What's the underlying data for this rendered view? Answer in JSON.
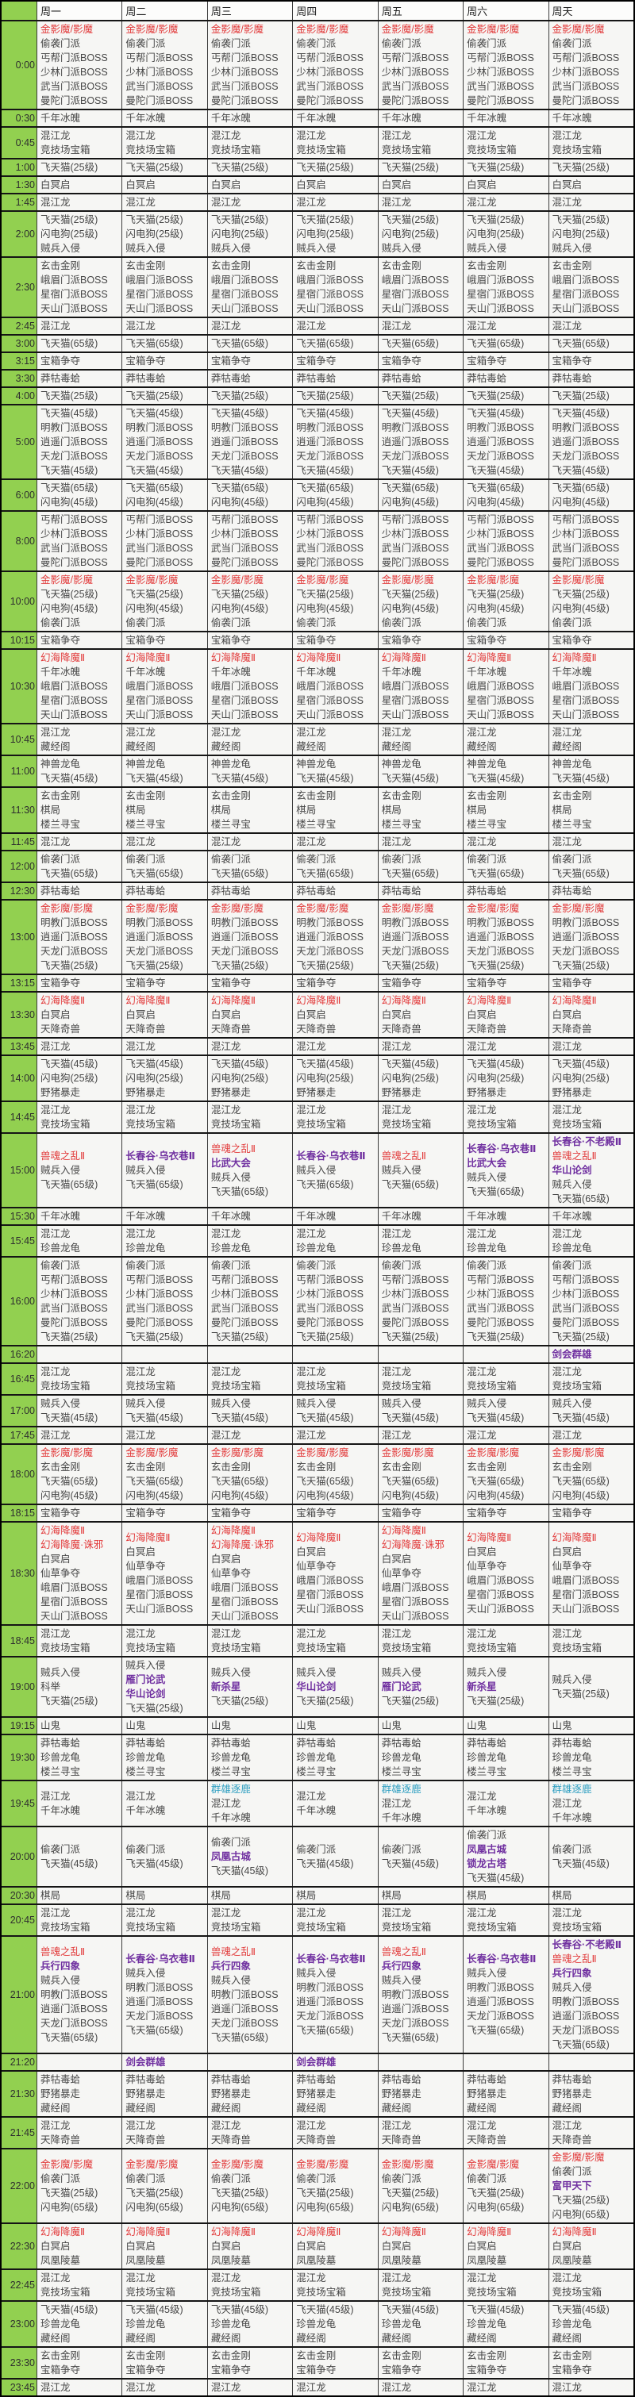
{
  "days": [
    "周一",
    "周二",
    "周三",
    "周四",
    "周五",
    "周六",
    "周天"
  ],
  "palette": {
    "time_column_green": "#92D050",
    "grid_line": "#151515",
    "cell_background": "#f6f6f4",
    "text_default": "#474747",
    "event_red": "#e23b3b",
    "event_purple": "#7030a0",
    "event_blue": "#2f9fc1"
  },
  "event_colors": {
    "金影魔/影魔": "red",
    "幻海降魔Ⅱ": "red",
    "幻海降魔·诛邪": "red",
    "兽魂之乱Ⅱ": "red",
    "长春谷·乌衣巷Ⅱ": "purple",
    "长春谷·不老殿Ⅱ": "purple",
    "比武大会": "purple",
    "华山论剑": "purple",
    "雁门论武": "purple",
    "新杀星": "purple",
    "凤凰古城": "purple",
    "锁龙古塔": "purple",
    "兵行四象": "purple",
    "剑会群雄": "purple",
    "富甲天下": "purple",
    "群雄逐鹿": "blue"
  },
  "rows": [
    {
      "time": "0:00",
      "all": [
        "金影魔/影魔",
        "偷袭门派",
        "丐帮门派BOSS",
        "少林门派BOSS",
        "武当门派BOSS",
        "曼陀门派BOSS"
      ]
    },
    {
      "time": "0:30",
      "all": [
        "千年冰魄"
      ]
    },
    {
      "time": "0:45",
      "all": [
        "混江龙",
        "竞技场宝箱"
      ]
    },
    {
      "time": "1:00",
      "all": [
        "飞天猫(25级)"
      ]
    },
    {
      "time": "1:30",
      "all": [
        "白冥启"
      ]
    },
    {
      "time": "1:45",
      "all": [
        "混江龙"
      ]
    },
    {
      "time": "2:00",
      "all": [
        "飞天猫(25级)",
        "闪电狗(25级)",
        "贼兵入侵"
      ]
    },
    {
      "time": "2:30",
      "all": [
        "玄击金刚",
        "峨眉门派BOSS",
        "星宿门派BOSS",
        "天山门派BOSS"
      ]
    },
    {
      "time": "2:45",
      "all": [
        "混江龙"
      ]
    },
    {
      "time": "3:00",
      "all": [
        "飞天猫(65级)"
      ]
    },
    {
      "time": "3:15",
      "all": [
        "宝箱争夺"
      ]
    },
    {
      "time": "3:30",
      "all": [
        "莽牯毒蛤"
      ]
    },
    {
      "time": "4:00",
      "all": [
        "飞天猫(25级)"
      ]
    },
    {
      "time": "5:00",
      "all": [
        "飞天猫(45级)",
        "明教门派BOSS",
        "逍遥门派BOSS",
        "天龙门派BOSS",
        "飞天猫(45级)"
      ]
    },
    {
      "time": "6:00",
      "all": [
        "飞天猫(65级)",
        "闪电狗(45级)"
      ]
    },
    {
      "time": "8:00",
      "all": [
        "丐帮门派BOSS",
        "少林门派BOSS",
        "武当门派BOSS",
        "曼陀门派BOSS"
      ]
    },
    {
      "time": "10:00",
      "all": [
        "金影魔/影魔",
        "飞天猫(25级)",
        "闪电狗(45级)",
        "偷袭门派"
      ]
    },
    {
      "time": "10:15",
      "all": [
        "宝箱争夺"
      ]
    },
    {
      "time": "10:30",
      "all": [
        "幻海降魔Ⅱ",
        "千年冰魄",
        "峨眉门派BOSS",
        "星宿门派BOSS",
        "天山门派BOSS"
      ]
    },
    {
      "time": "10:45",
      "all": [
        "混江龙",
        "藏经阁"
      ]
    },
    {
      "time": "11:00",
      "all": [
        "神兽龙龟",
        "飞天猫(45级)"
      ]
    },
    {
      "time": "11:30",
      "all": [
        "玄击金刚",
        "棋局",
        "楼兰寻宝"
      ]
    },
    {
      "time": "11:45",
      "all": [
        "混江龙"
      ]
    },
    {
      "time": "12:00",
      "all": [
        "偷袭门派",
        "飞天猫(65级)"
      ]
    },
    {
      "time": "12:30",
      "all": [
        "莽牯毒蛤"
      ]
    },
    {
      "time": "13:00",
      "all": [
        "金影魔/影魔",
        "明教门派BOSS",
        "逍遥门派BOSS",
        "天龙门派BOSS",
        "飞天猫(25级)"
      ]
    },
    {
      "time": "13:15",
      "all": [
        "宝箱争夺"
      ]
    },
    {
      "time": "13:30",
      "all": [
        "幻海降魔Ⅱ",
        "白冥启",
        "天降奇兽"
      ]
    },
    {
      "time": "13:45",
      "all": [
        "混江龙"
      ]
    },
    {
      "time": "14:00",
      "all": [
        "飞天猫(45级)",
        "闪电狗(25级)",
        "野猪暴走"
      ]
    },
    {
      "time": "14:45",
      "all": [
        "混江龙",
        "竞技场宝箱"
      ]
    },
    {
      "time": "15:00",
      "days": [
        [
          "兽魂之乱Ⅱ",
          "贼兵入侵",
          "飞天猫(65级)"
        ],
        [
          "长春谷·乌衣巷Ⅱ",
          "贼兵入侵",
          "飞天猫(65级)"
        ],
        [
          "兽魂之乱Ⅱ",
          "比武大会",
          "贼兵入侵",
          "飞天猫(65级)"
        ],
        [
          "长春谷·乌衣巷Ⅱ",
          "贼兵入侵",
          "飞天猫(65级)"
        ],
        [
          "兽魂之乱Ⅱ",
          "贼兵入侵",
          "飞天猫(65级)"
        ],
        [
          "长春谷·乌衣巷Ⅱ",
          "比武大会",
          "贼兵入侵",
          "飞天猫(65级)"
        ],
        [
          "长春谷·不老殿Ⅱ",
          "兽魂之乱Ⅱ",
          "华山论剑",
          "贼兵入侵",
          "飞天猫(65级)"
        ]
      ]
    },
    {
      "time": "15:30",
      "all": [
        "千年冰魄"
      ]
    },
    {
      "time": "15:45",
      "all": [
        "混江龙",
        "珍兽龙龟"
      ]
    },
    {
      "time": "16:00",
      "all": [
        "偷袭门派",
        "丐帮门派BOSS",
        "少林门派BOSS",
        "武当门派BOSS",
        "曼陀门派BOSS",
        "飞天猫(25级)"
      ]
    },
    {
      "time": "16:20",
      "days": [
        [],
        [],
        [],
        [],
        [],
        [],
        [
          "剑会群雄"
        ]
      ]
    },
    {
      "time": "16:45",
      "all": [
        "混江龙",
        "竞技场宝箱"
      ]
    },
    {
      "time": "17:00",
      "all": [
        "贼兵入侵",
        "飞天猫(45级)"
      ]
    },
    {
      "time": "17:45",
      "all": [
        "混江龙"
      ]
    },
    {
      "time": "18:00",
      "all": [
        "金影魔/影魔",
        "玄击金刚",
        "飞天猫(65级)",
        "闪电狗(45级)"
      ]
    },
    {
      "time": "18:15",
      "all": [
        "宝箱争夺"
      ]
    },
    {
      "time": "18:30",
      "days": [
        [
          "幻海降魔Ⅱ",
          "幻海降魔·诛邪",
          "白冥启",
          "仙草争夺",
          "峨眉门派BOSS",
          "星宿门派BOSS",
          "天山门派BOSS"
        ],
        [
          "幻海降魔Ⅱ",
          "白冥启",
          "仙草争夺",
          "峨眉门派BOSS",
          "星宿门派BOSS",
          "天山门派BOSS"
        ],
        [
          "幻海降魔Ⅱ",
          "幻海降魔·诛邪",
          "白冥启",
          "仙草争夺",
          "峨眉门派BOSS",
          "星宿门派BOSS",
          "天山门派BOSS"
        ],
        [
          "幻海降魔Ⅱ",
          "白冥启",
          "仙草争夺",
          "峨眉门派BOSS",
          "星宿门派BOSS",
          "天山门派BOSS"
        ],
        [
          "幻海降魔Ⅱ",
          "幻海降魔·诛邪",
          "白冥启",
          "仙草争夺",
          "峨眉门派BOSS",
          "星宿门派BOSS",
          "天山门派BOSS"
        ],
        [
          "幻海降魔Ⅱ",
          "白冥启",
          "仙草争夺",
          "峨眉门派BOSS",
          "星宿门派BOSS",
          "天山门派BOSS"
        ],
        [
          "幻海降魔Ⅱ",
          "白冥启",
          "仙草争夺",
          "峨眉门派BOSS",
          "星宿门派BOSS",
          "天山门派BOSS"
        ]
      ]
    },
    {
      "time": "18:45",
      "all": [
        "混江龙",
        "竞技场宝箱"
      ]
    },
    {
      "time": "19:00",
      "days": [
        [
          "贼兵入侵",
          "科举",
          "飞天猫(25级)"
        ],
        [
          "贼兵入侵",
          "雁门论武",
          "华山论剑",
          "飞天猫(25级)"
        ],
        [
          "贼兵入侵",
          "新杀星",
          "飞天猫(25级)"
        ],
        [
          "贼兵入侵",
          "华山论剑",
          "飞天猫(25级)"
        ],
        [
          "贼兵入侵",
          "雁门论武",
          "飞天猫(25级)"
        ],
        [
          "贼兵入侵",
          "新杀星",
          "飞天猫(25级)"
        ],
        [
          "贼兵入侵",
          "飞天猫(25级)"
        ]
      ]
    },
    {
      "time": "19:15",
      "all": [
        "山鬼"
      ]
    },
    {
      "time": "19:30",
      "all": [
        "莽牯毒蛤",
        "珍兽龙龟",
        "楼兰寻宝"
      ]
    },
    {
      "time": "19:45",
      "days": [
        [
          "混江龙",
          "千年冰魄"
        ],
        [
          "混江龙",
          "千年冰魄"
        ],
        [
          "群雄逐鹿",
          "混江龙",
          "千年冰魄"
        ],
        [
          "混江龙",
          "千年冰魄"
        ],
        [
          "群雄逐鹿",
          "混江龙",
          "千年冰魄"
        ],
        [
          "混江龙",
          "千年冰魄"
        ],
        [
          "群雄逐鹿",
          "混江龙",
          "千年冰魄"
        ]
      ]
    },
    {
      "time": "20:00",
      "days": [
        [
          "偷袭门派",
          "飞天猫(45级)"
        ],
        [
          "偷袭门派",
          "飞天猫(45级)"
        ],
        [
          "偷袭门派",
          "凤凰古城",
          "飞天猫(45级)"
        ],
        [
          "偷袭门派",
          "飞天猫(45级)"
        ],
        [
          "偷袭门派",
          "飞天猫(45级)"
        ],
        [
          "偷袭门派",
          "凤凰古城",
          "锁龙古塔",
          "飞天猫(45级)"
        ],
        [
          "偷袭门派",
          "飞天猫(45级)"
        ]
      ]
    },
    {
      "time": "20:30",
      "all": [
        "棋局"
      ]
    },
    {
      "time": "20:45",
      "all": [
        "混江龙",
        "竞技场宝箱"
      ]
    },
    {
      "time": "21:00",
      "days": [
        [
          "兽魂之乱Ⅱ",
          "兵行四象",
          "贼兵入侵",
          "明教门派BOSS",
          "逍遥门派BOSS",
          "天龙门派BOSS",
          "飞天猫(65级)"
        ],
        [
          "长春谷·乌衣巷Ⅱ",
          "贼兵入侵",
          "明教门派BOSS",
          "逍遥门派BOSS",
          "天龙门派BOSS",
          "飞天猫(65级)"
        ],
        [
          "兽魂之乱Ⅱ",
          "兵行四象",
          "贼兵入侵",
          "明教门派BOSS",
          "逍遥门派BOSS",
          "天龙门派BOSS",
          "飞天猫(65级)"
        ],
        [
          "长春谷·乌衣巷Ⅱ",
          "贼兵入侵",
          "明教门派BOSS",
          "逍遥门派BOSS",
          "天龙门派BOSS",
          "飞天猫(65级)"
        ],
        [
          "兽魂之乱Ⅱ",
          "兵行四象",
          "贼兵入侵",
          "明教门派BOSS",
          "逍遥门派BOSS",
          "天龙门派BOSS",
          "飞天猫(65级)"
        ],
        [
          "长春谷·乌衣巷Ⅱ",
          "贼兵入侵",
          "明教门派BOSS",
          "逍遥门派BOSS",
          "天龙门派BOSS",
          "飞天猫(65级)"
        ],
        [
          "长春谷·不老殿Ⅱ",
          "兽魂之乱Ⅱ",
          "兵行四象",
          "贼兵入侵",
          "明教门派BOSS",
          "逍遥门派BOSS",
          "天龙门派BOSS",
          "飞天猫(65级)"
        ]
      ]
    },
    {
      "time": "21:20",
      "days": [
        [],
        [
          "剑会群雄"
        ],
        [],
        [
          "剑会群雄"
        ],
        [],
        [],
        []
      ]
    },
    {
      "time": "21:30",
      "all": [
        "莽牯毒蛤",
        "野猪暴走",
        "藏经阁"
      ]
    },
    {
      "time": "21:45",
      "all": [
        "混江龙",
        "天降奇兽"
      ]
    },
    {
      "time": "22:00",
      "days": [
        [
          "金影魔/影魔",
          "偷袭门派",
          "飞天猫(25级)",
          "闪电狗(65级)"
        ],
        [
          "金影魔/影魔",
          "偷袭门派",
          "飞天猫(25级)",
          "闪电狗(65级)"
        ],
        [
          "金影魔/影魔",
          "偷袭门派",
          "飞天猫(25级)",
          "闪电狗(65级)"
        ],
        [
          "金影魔/影魔",
          "偷袭门派",
          "飞天猫(25级)",
          "闪电狗(65级)"
        ],
        [
          "金影魔/影魔",
          "偷袭门派",
          "飞天猫(25级)",
          "闪电狗(65级)"
        ],
        [
          "金影魔/影魔",
          "偷袭门派",
          "飞天猫(25级)",
          "闪电狗(65级)"
        ],
        [
          "金影魔/影魔",
          "偷袭门派",
          "富甲天下",
          "飞天猫(25级)",
          "闪电狗(65级)"
        ]
      ]
    },
    {
      "time": "22:30",
      "all": [
        "幻海降魔Ⅱ",
        "白冥启",
        "凤凰陵墓"
      ]
    },
    {
      "time": "22:45",
      "all": [
        "混江龙",
        "竞技场宝箱"
      ]
    },
    {
      "time": "23:00",
      "all": [
        "飞天猫(45级)",
        "珍兽龙龟",
        "藏经阁"
      ]
    },
    {
      "time": "23:30",
      "all": [
        "玄击金刚",
        "宝箱争夺"
      ]
    },
    {
      "time": "23:45",
      "all": [
        "混江龙"
      ]
    }
  ]
}
